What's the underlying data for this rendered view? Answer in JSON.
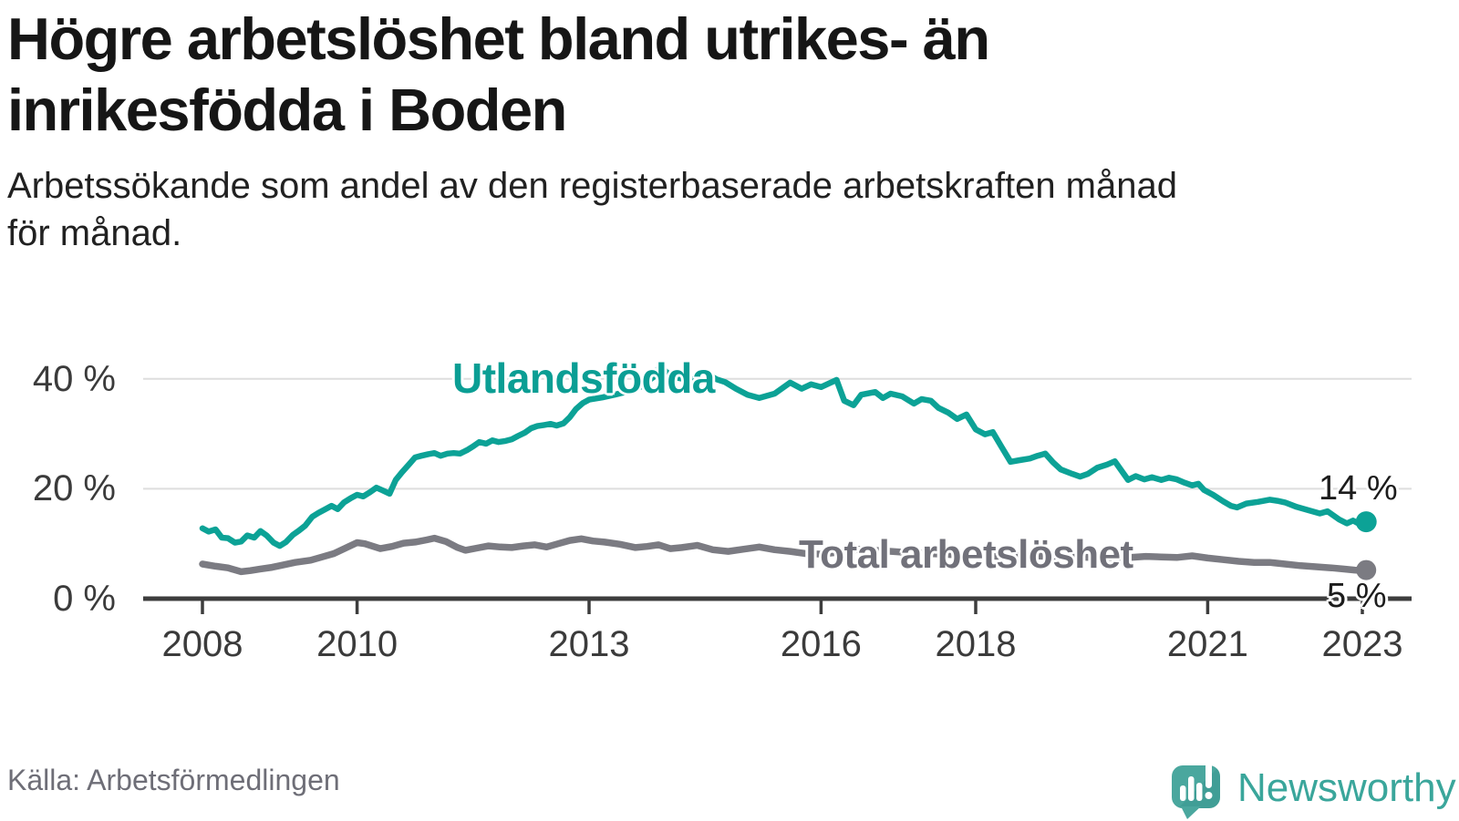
{
  "header": {
    "title_line1": "Högre arbetslöshet bland utrikes- än",
    "title_line2": "inrikesfödda i Boden",
    "subtitle_line1": "Arbetssökande som andel av den registerbaserade arbetskraften månad",
    "subtitle_line2": "för månad."
  },
  "footer": {
    "source": "Källa: Arbetsförmedlingen",
    "brand": "Newsworthy",
    "logo_icon": "newsworthy-speech-bubble-chart-icon"
  },
  "colors": {
    "accent_teal": "#0ca296",
    "line_gray": "#7b7b82",
    "grid": "#dedede",
    "axis": "#3d3d3d",
    "logo_teal": "#4aa79e",
    "logo_teal_dark": "#2f9088",
    "wordmark_teal": "#3aa69b"
  },
  "chart_data": {
    "type": "line",
    "title": "Högre arbetslöshet bland utrikes- än inrikesfödda i Boden",
    "subtitle": "Arbetssökande som andel av den registerbaserade arbetskraften månad för månad.",
    "grid": "horizontal-only",
    "legend": "inline-labels",
    "x_axis": {
      "ticks": [
        "2008",
        "2010",
        "2013",
        "2016",
        "2018",
        "2021",
        "2023"
      ],
      "tick_years": [
        2008,
        2010,
        2013,
        2016,
        2018,
        2021,
        2023
      ],
      "xlim": [
        2007.25,
        2023.85
      ]
    },
    "y_axis": {
      "ticks": [
        "0 %",
        "20 %",
        "40 %"
      ],
      "tick_values": [
        0,
        20,
        40
      ],
      "unit": "%",
      "ylim": [
        0,
        44
      ]
    },
    "series": [
      {
        "name": "Utlandsfödda",
        "label_text": "Utlandsfödda",
        "end_label": "14 %",
        "last_value": 14,
        "color": "#0ca296",
        "label_color": "#0b9e94",
        "points": [
          [
            2008.0,
            12.8
          ],
          [
            2008.08,
            12.2
          ],
          [
            2008.17,
            12.6
          ],
          [
            2008.25,
            11.1
          ],
          [
            2008.33,
            11.0
          ],
          [
            2008.42,
            10.2
          ],
          [
            2008.5,
            10.4
          ],
          [
            2008.58,
            11.5
          ],
          [
            2008.67,
            11.1
          ],
          [
            2008.75,
            12.3
          ],
          [
            2008.83,
            11.5
          ],
          [
            2008.92,
            10.2
          ],
          [
            2009.0,
            9.6
          ],
          [
            2009.08,
            10.3
          ],
          [
            2009.17,
            11.6
          ],
          [
            2009.25,
            12.4
          ],
          [
            2009.33,
            13.3
          ],
          [
            2009.42,
            14.9
          ],
          [
            2009.5,
            15.6
          ],
          [
            2009.58,
            16.2
          ],
          [
            2009.67,
            16.9
          ],
          [
            2009.75,
            16.3
          ],
          [
            2009.83,
            17.5
          ],
          [
            2009.92,
            18.3
          ],
          [
            2010.0,
            18.9
          ],
          [
            2010.08,
            18.6
          ],
          [
            2010.17,
            19.4
          ],
          [
            2010.25,
            20.2
          ],
          [
            2010.33,
            19.7
          ],
          [
            2010.42,
            19.1
          ],
          [
            2010.5,
            21.6
          ],
          [
            2010.58,
            23.0
          ],
          [
            2010.67,
            24.4
          ],
          [
            2010.75,
            25.7
          ],
          [
            2010.83,
            26.0
          ],
          [
            2010.92,
            26.3
          ],
          [
            2011.0,
            26.5
          ],
          [
            2011.08,
            26.0
          ],
          [
            2011.17,
            26.4
          ],
          [
            2011.25,
            26.5
          ],
          [
            2011.33,
            26.4
          ],
          [
            2011.42,
            27.0
          ],
          [
            2011.5,
            27.7
          ],
          [
            2011.58,
            28.5
          ],
          [
            2011.67,
            28.2
          ],
          [
            2011.75,
            28.8
          ],
          [
            2011.83,
            28.5
          ],
          [
            2011.92,
            28.7
          ],
          [
            2012.0,
            29.0
          ],
          [
            2012.08,
            29.6
          ],
          [
            2012.17,
            30.2
          ],
          [
            2012.25,
            31.0
          ],
          [
            2012.33,
            31.4
          ],
          [
            2012.42,
            31.6
          ],
          [
            2012.5,
            31.8
          ],
          [
            2012.58,
            31.5
          ],
          [
            2012.67,
            31.9
          ],
          [
            2012.75,
            33.0
          ],
          [
            2012.83,
            34.5
          ],
          [
            2012.92,
            35.6
          ],
          [
            2013.0,
            36.2
          ],
          [
            2013.17,
            36.6
          ],
          [
            2013.33,
            37.1
          ],
          [
            2013.5,
            37.7
          ],
          [
            2013.67,
            38.6
          ],
          [
            2013.83,
            40.3
          ],
          [
            2013.92,
            42.4
          ],
          [
            2014.0,
            41.2
          ],
          [
            2014.1,
            40.3
          ],
          [
            2014.25,
            39.9
          ],
          [
            2014.4,
            40.4
          ],
          [
            2014.55,
            40.7
          ],
          [
            2014.65,
            39.9
          ],
          [
            2014.76,
            39.4
          ],
          [
            2014.9,
            38.2
          ],
          [
            2015.05,
            37.1
          ],
          [
            2015.2,
            36.5
          ],
          [
            2015.4,
            37.3
          ],
          [
            2015.6,
            39.3
          ],
          [
            2015.75,
            38.2
          ],
          [
            2015.87,
            39.0
          ],
          [
            2016.0,
            38.5
          ],
          [
            2016.2,
            39.8
          ],
          [
            2016.3,
            36.0
          ],
          [
            2016.42,
            35.2
          ],
          [
            2016.52,
            37.1
          ],
          [
            2016.7,
            37.6
          ],
          [
            2016.8,
            36.5
          ],
          [
            2016.9,
            37.3
          ],
          [
            2017.05,
            36.8
          ],
          [
            2017.2,
            35.5
          ],
          [
            2017.3,
            36.3
          ],
          [
            2017.42,
            36.0
          ],
          [
            2017.52,
            34.7
          ],
          [
            2017.65,
            33.8
          ],
          [
            2017.76,
            32.7
          ],
          [
            2017.88,
            33.5
          ],
          [
            2018.0,
            30.8
          ],
          [
            2018.12,
            29.9
          ],
          [
            2018.22,
            30.3
          ],
          [
            2018.33,
            27.7
          ],
          [
            2018.45,
            24.9
          ],
          [
            2018.57,
            25.2
          ],
          [
            2018.7,
            25.5
          ],
          [
            2018.8,
            26.0
          ],
          [
            2018.9,
            26.4
          ],
          [
            2019.0,
            24.8
          ],
          [
            2019.1,
            23.5
          ],
          [
            2019.25,
            22.7
          ],
          [
            2019.35,
            22.2
          ],
          [
            2019.45,
            22.7
          ],
          [
            2019.57,
            23.8
          ],
          [
            2019.7,
            24.4
          ],
          [
            2019.8,
            25.0
          ],
          [
            2019.9,
            23.0
          ],
          [
            2019.97,
            21.6
          ],
          [
            2020.07,
            22.3
          ],
          [
            2020.18,
            21.7
          ],
          [
            2020.28,
            22.1
          ],
          [
            2020.4,
            21.6
          ],
          [
            2020.5,
            22.0
          ],
          [
            2020.6,
            21.7
          ],
          [
            2020.7,
            21.1
          ],
          [
            2020.8,
            20.6
          ],
          [
            2020.88,
            20.9
          ],
          [
            2020.95,
            19.8
          ],
          [
            2021.07,
            18.9
          ],
          [
            2021.2,
            17.7
          ],
          [
            2021.3,
            16.9
          ],
          [
            2021.38,
            16.6
          ],
          [
            2021.5,
            17.3
          ],
          [
            2021.65,
            17.6
          ],
          [
            2021.8,
            18.0
          ],
          [
            2021.9,
            17.8
          ],
          [
            2022.0,
            17.5
          ],
          [
            2022.15,
            16.7
          ],
          [
            2022.3,
            16.1
          ],
          [
            2022.45,
            15.5
          ],
          [
            2022.55,
            15.9
          ],
          [
            2022.7,
            14.4
          ],
          [
            2022.8,
            13.7
          ],
          [
            2022.88,
            14.2
          ],
          [
            2023.0,
            13.3
          ],
          [
            2023.05,
            14.0
          ]
        ]
      },
      {
        "name": "Total arbetslöshet",
        "label_text": "Total arbetslöshet",
        "end_label": "5 %",
        "last_value": 5,
        "color": "#7b7b82",
        "label_color": "#71717a",
        "points": [
          [
            2008.0,
            6.3
          ],
          [
            2008.17,
            5.9
          ],
          [
            2008.33,
            5.6
          ],
          [
            2008.5,
            4.9
          ],
          [
            2008.62,
            5.1
          ],
          [
            2008.75,
            5.4
          ],
          [
            2008.9,
            5.7
          ],
          [
            2009.0,
            6.0
          ],
          [
            2009.2,
            6.6
          ],
          [
            2009.4,
            7.0
          ],
          [
            2009.55,
            7.6
          ],
          [
            2009.7,
            8.2
          ],
          [
            2009.85,
            9.2
          ],
          [
            2010.0,
            10.2
          ],
          [
            2010.1,
            10.0
          ],
          [
            2010.3,
            9.1
          ],
          [
            2010.45,
            9.5
          ],
          [
            2010.6,
            10.1
          ],
          [
            2010.75,
            10.3
          ],
          [
            2010.9,
            10.7
          ],
          [
            2011.0,
            11.0
          ],
          [
            2011.15,
            10.4
          ],
          [
            2011.3,
            9.3
          ],
          [
            2011.4,
            8.8
          ],
          [
            2011.55,
            9.2
          ],
          [
            2011.7,
            9.6
          ],
          [
            2011.85,
            9.4
          ],
          [
            2012.0,
            9.3
          ],
          [
            2012.15,
            9.6
          ],
          [
            2012.3,
            9.8
          ],
          [
            2012.45,
            9.4
          ],
          [
            2012.6,
            10.0
          ],
          [
            2012.75,
            10.6
          ],
          [
            2012.9,
            10.9
          ],
          [
            2013.05,
            10.5
          ],
          [
            2013.2,
            10.3
          ],
          [
            2013.4,
            9.9
          ],
          [
            2013.6,
            9.3
          ],
          [
            2013.75,
            9.5
          ],
          [
            2013.9,
            9.8
          ],
          [
            2014.05,
            9.1
          ],
          [
            2014.2,
            9.3
          ],
          [
            2014.4,
            9.7
          ],
          [
            2014.6,
            8.9
          ],
          [
            2014.8,
            8.6
          ],
          [
            2015.0,
            9.0
          ],
          [
            2015.2,
            9.4
          ],
          [
            2015.4,
            8.9
          ],
          [
            2015.6,
            8.6
          ],
          [
            2015.8,
            8.2
          ],
          [
            2016.0,
            8.1
          ],
          [
            2016.2,
            8.4
          ],
          [
            2016.5,
            9.0
          ],
          [
            2016.8,
            8.7
          ],
          [
            2017.1,
            8.4
          ],
          [
            2017.4,
            8.2
          ],
          [
            2017.7,
            8.0
          ],
          [
            2018.0,
            7.9
          ],
          [
            2018.3,
            7.7
          ],
          [
            2018.6,
            7.9
          ],
          [
            2018.9,
            7.7
          ],
          [
            2019.2,
            7.6
          ],
          [
            2019.5,
            7.5
          ],
          [
            2019.8,
            7.4
          ],
          [
            2020.0,
            7.5
          ],
          [
            2020.2,
            7.7
          ],
          [
            2020.4,
            7.6
          ],
          [
            2020.6,
            7.5
          ],
          [
            2020.8,
            7.8
          ],
          [
            2021.0,
            7.4
          ],
          [
            2021.2,
            7.1
          ],
          [
            2021.4,
            6.8
          ],
          [
            2021.6,
            6.6
          ],
          [
            2021.8,
            6.6
          ],
          [
            2022.0,
            6.3
          ],
          [
            2022.2,
            6.0
          ],
          [
            2022.4,
            5.8
          ],
          [
            2022.6,
            5.6
          ],
          [
            2022.75,
            5.4
          ],
          [
            2022.9,
            5.2
          ],
          [
            2023.0,
            5.1
          ],
          [
            2023.05,
            5.2
          ]
        ]
      }
    ]
  }
}
